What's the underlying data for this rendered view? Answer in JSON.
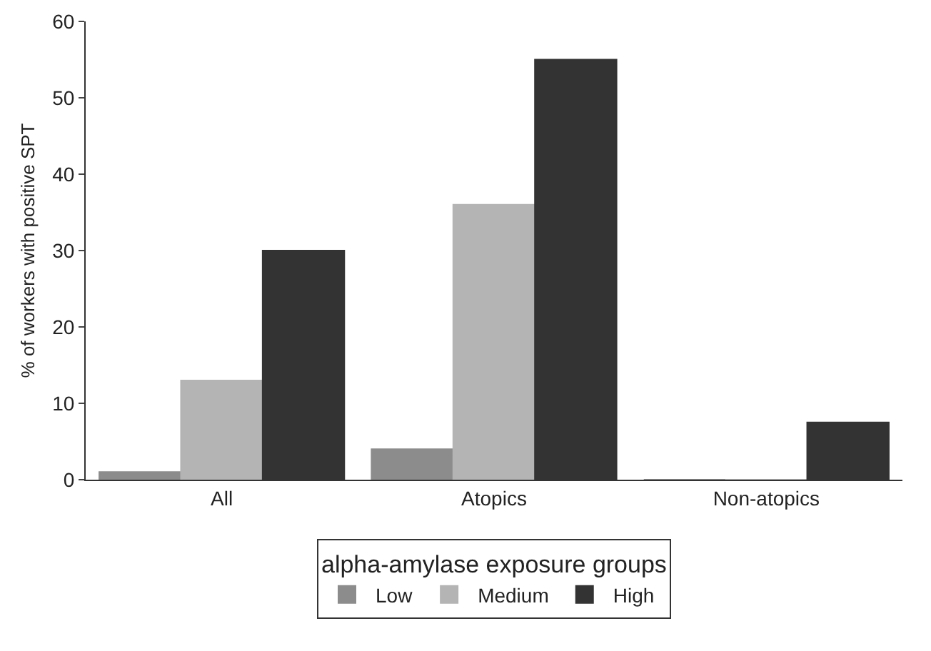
{
  "chart_data": {
    "type": "bar",
    "ylabel": "% of workers with positive SPT",
    "legend_title": "alpha-amylase exposure groups",
    "categories": [
      "All",
      "Atopics",
      "Non-atopics"
    ],
    "series": [
      {
        "name": "Low",
        "color": "#8c8c8c",
        "values": [
          1,
          4,
          0
        ]
      },
      {
        "name": "Medium",
        "color": "#b4b4b4",
        "values": [
          13,
          36,
          0
        ]
      },
      {
        "name": "High",
        "color": "#333333",
        "values": [
          30,
          55,
          7.5
        ]
      }
    ],
    "ylim": [
      0,
      60
    ],
    "yticks": [
      0,
      10,
      20,
      30,
      40,
      50,
      60
    ],
    "grid": false,
    "legend": "bottom"
  }
}
